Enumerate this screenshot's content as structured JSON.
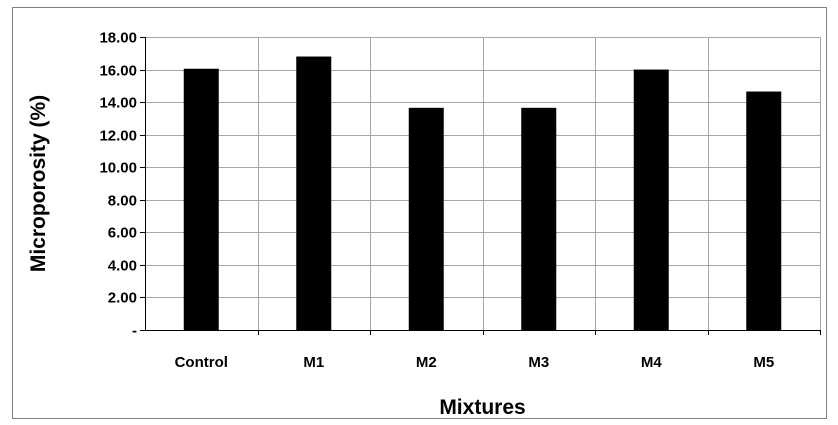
{
  "chart_data": {
    "type": "bar",
    "title": "",
    "xlabel": "Mixtures",
    "ylabel": "Microporosity (%)",
    "categories": [
      "Control",
      "M1",
      "M2",
      "M3",
      "M4",
      "M5"
    ],
    "values": [
      16.05,
      16.8,
      13.65,
      13.65,
      16.0,
      14.65
    ],
    "ylim": [
      0,
      18
    ],
    "yticks": [
      0,
      2,
      4,
      6,
      8,
      10,
      12,
      14,
      16,
      18
    ],
    "ytick_labels": [
      "-",
      "2.00",
      "4.00",
      "6.00",
      "8.00",
      "10.00",
      "12.00",
      "14.00",
      "16.00",
      "18.00"
    ],
    "grid": true,
    "legend": "none",
    "bar_color": "#000000",
    "grid_color": "#a6a6a6"
  }
}
